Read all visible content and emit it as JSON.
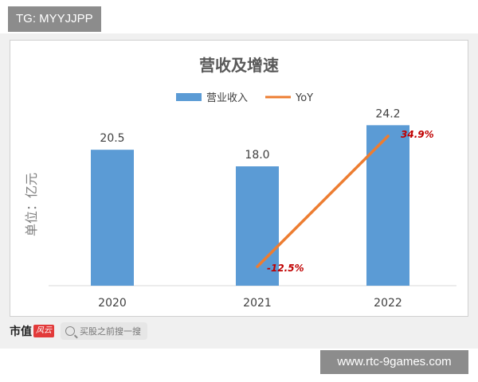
{
  "tag": "TG: MYYJJPP",
  "watermark": "www.rtc-9games.com",
  "footer": {
    "brand": "市值",
    "brand_badge": "风云",
    "search_placeholder": "买股之前搜一搜"
  },
  "colors": {
    "bar": "#5b9bd5",
    "line": "#ed7d31",
    "yoy_label": "#c00000"
  },
  "chart_data": {
    "type": "bar",
    "title": "营收及增速",
    "ylabel": "单位：亿元",
    "categories": [
      "2020",
      "2021",
      "2022"
    ],
    "series": [
      {
        "name": "营业收入",
        "values": [
          20.5,
          18.0,
          24.2
        ],
        "labels": [
          "20.5",
          "18.0",
          "24.2"
        ]
      },
      {
        "name": "YoY",
        "type": "line",
        "values": [
          null,
          -12.5,
          34.9
        ],
        "labels": [
          "",
          "-12.5%",
          "34.9%"
        ]
      }
    ],
    "ylim": [
      0,
      30
    ],
    "yoy_lim": [
      -20,
      40
    ],
    "legend": "top-center",
    "grid": false
  }
}
